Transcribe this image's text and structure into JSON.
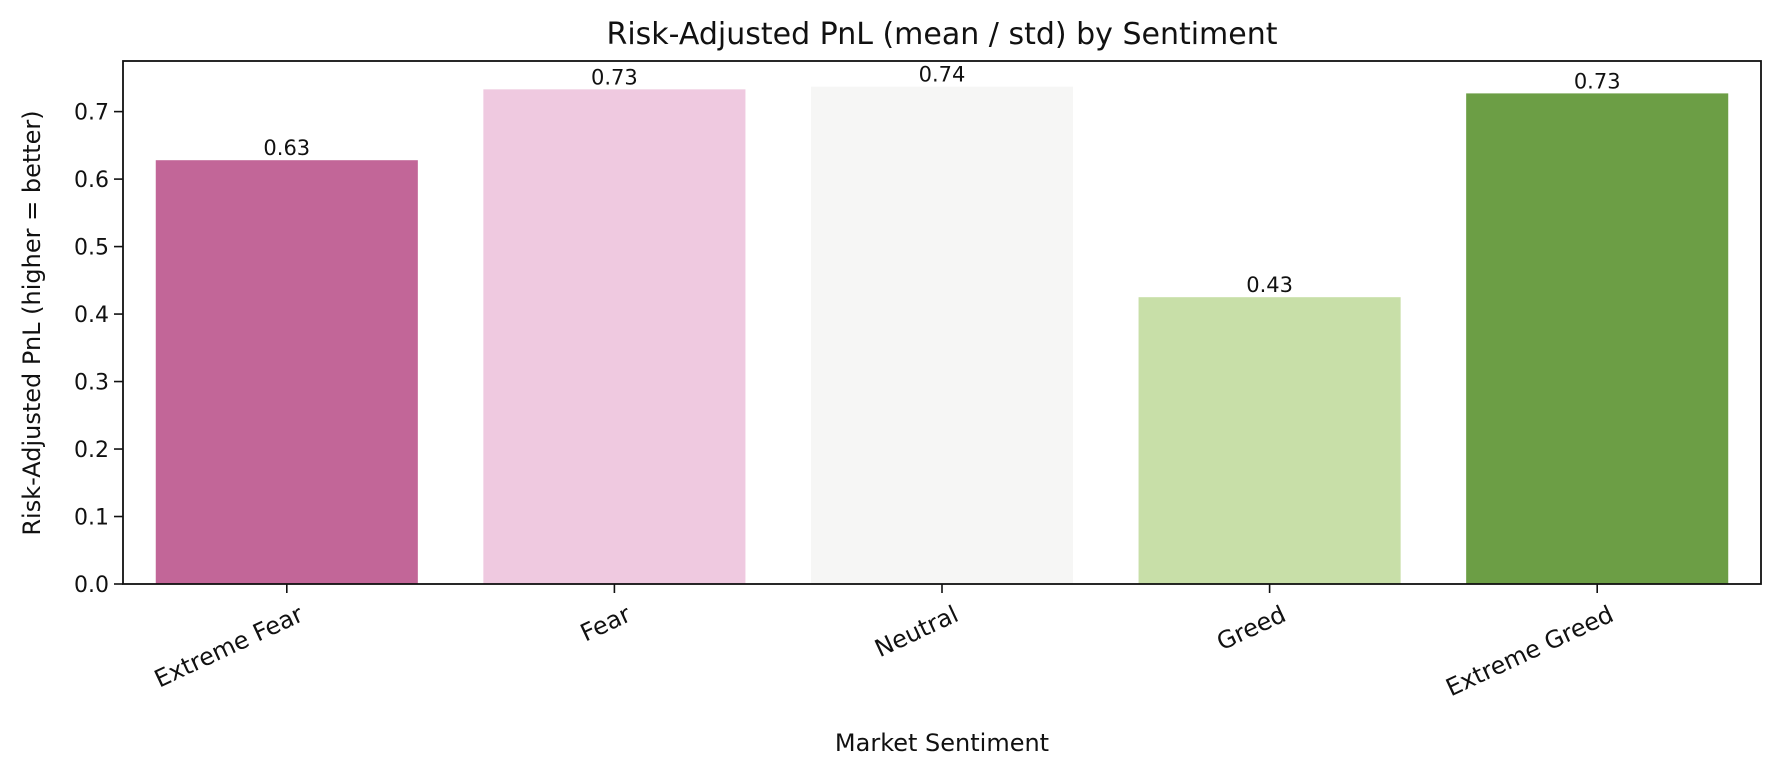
{
  "chart_data": {
    "type": "bar",
    "title": "Risk-Adjusted PnL (mean / std) by Sentiment",
    "xlabel": "Market Sentiment",
    "ylabel": "Risk-Adjusted PnL (higher = better)",
    "categories": [
      "Extreme Fear",
      "Fear",
      "Neutral",
      "Greed",
      "Extreme Greed"
    ],
    "values": [
      0.628,
      0.733,
      0.737,
      0.425,
      0.727
    ],
    "data_labels": [
      "0.63",
      "0.73",
      "0.74",
      "0.43",
      "0.73"
    ],
    "colors": [
      "#c26698",
      "#efc9e0",
      "#f6f6f5",
      "#c8dfa8",
      "#6c9e45"
    ],
    "ylim": [
      0,
      0.775
    ],
    "yticks": [
      0.0,
      0.1,
      0.2,
      0.3,
      0.4,
      0.5,
      0.6,
      0.7
    ],
    "ytick_labels": [
      "0.0",
      "0.1",
      "0.2",
      "0.3",
      "0.4",
      "0.5",
      "0.6",
      "0.7"
    ],
    "grid": false,
    "xtick_rotation_deg": -25
  }
}
